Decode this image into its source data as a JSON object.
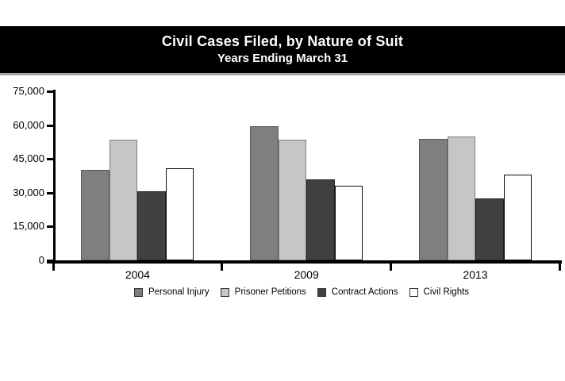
{
  "header": {
    "bg_color": "#000000",
    "text_color": "#FFFFFF"
  },
  "chart_data": {
    "type": "bar",
    "title": "Civil Cases Filed, by Nature of Suit",
    "subtitle": "Years Ending March 31",
    "categories": [
      "2004",
      "2009",
      "2013"
    ],
    "series": [
      {
        "name": "Personal Injury",
        "color": "#7F7F7F",
        "border_color": "#595959",
        "border_width": 1,
        "values": [
          40000,
          59500,
          54000
        ]
      },
      {
        "name": "Prisoner Petitions",
        "color": "#C6C6C6",
        "border_color": "#7F7F7F",
        "border_width": 1,
        "values": [
          53500,
          53500,
          55000
        ]
      },
      {
        "name": "Contract Actions",
        "color": "#404040",
        "border_color": "#1F1F1F",
        "border_width": 1,
        "values": [
          30500,
          36000,
          27500
        ]
      },
      {
        "name": "Civil Rights",
        "color": "#FFFFFF",
        "border_color": "#0D0D0D",
        "border_width": 1.5,
        "values": [
          41000,
          33000,
          38000
        ]
      }
    ],
    "xlabel": "",
    "ylabel": "",
    "ylim": [
      0,
      75000
    ],
    "yticks": [
      0,
      15000,
      30000,
      45000,
      60000,
      75000
    ],
    "ytick_labels": [
      "0",
      "15,000",
      "30,000",
      "45,000",
      "60,000",
      "75,000"
    ],
    "grid": false,
    "legend_position": "bottom",
    "axis_color": "#000000"
  }
}
